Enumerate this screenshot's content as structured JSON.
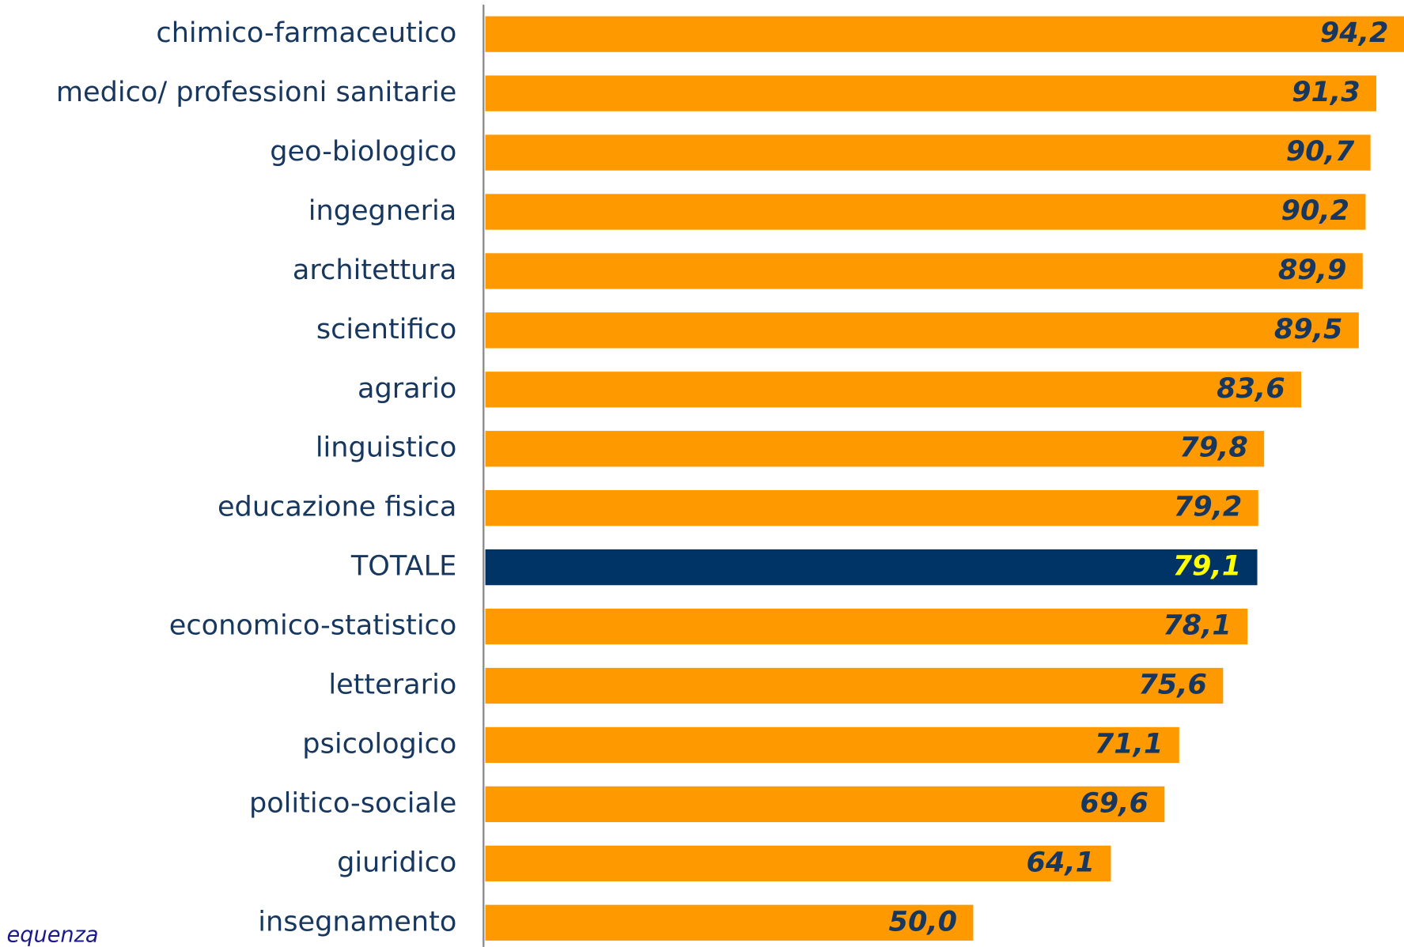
{
  "chart_data": {
    "type": "bar",
    "orientation": "horizontal",
    "categories": [
      "chimico-farmaceutico",
      "medico/ professioni sanitarie",
      "geo-biologico",
      "ingegneria",
      "architettura",
      "scientifico",
      "agrario",
      "linguistico",
      "educazione fisica",
      "TOTALE",
      "economico-statistico",
      "letterario",
      "psicologico",
      "politico-sociale",
      "giuridico",
      "insegnamento"
    ],
    "values": [
      94.2,
      91.3,
      90.7,
      90.2,
      89.9,
      89.5,
      83.6,
      79.8,
      79.2,
      79.1,
      78.1,
      75.6,
      71.1,
      69.6,
      64.1,
      50.0
    ],
    "value_labels": [
      "94,2",
      "91,3",
      "90,7",
      "90,2",
      "89,9",
      "89,5",
      "83,6",
      "79,8",
      "79,2",
      "79,1",
      "78,1",
      "75,6",
      "71,1",
      "69,6",
      "64,1",
      "50,0"
    ],
    "colors": [
      "#ff9900",
      "#ff9900",
      "#ff9900",
      "#ff9900",
      "#ff9900",
      "#ff9900",
      "#ff9900",
      "#ff9900",
      "#ff9900",
      "#003366",
      "#ff9900",
      "#ff9900",
      "#ff9900",
      "#ff9900",
      "#ff9900",
      "#ff9900"
    ],
    "label_colors": [
      "#17375e",
      "#17375e",
      "#17375e",
      "#17375e",
      "#17375e",
      "#17375e",
      "#17375e",
      "#17375e",
      "#17375e",
      "#ffff00",
      "#17375e",
      "#17375e",
      "#17375e",
      "#17375e",
      "#17375e",
      "#17375e"
    ],
    "xlim": [
      0,
      94.5
    ],
    "footnote": "equenza"
  }
}
